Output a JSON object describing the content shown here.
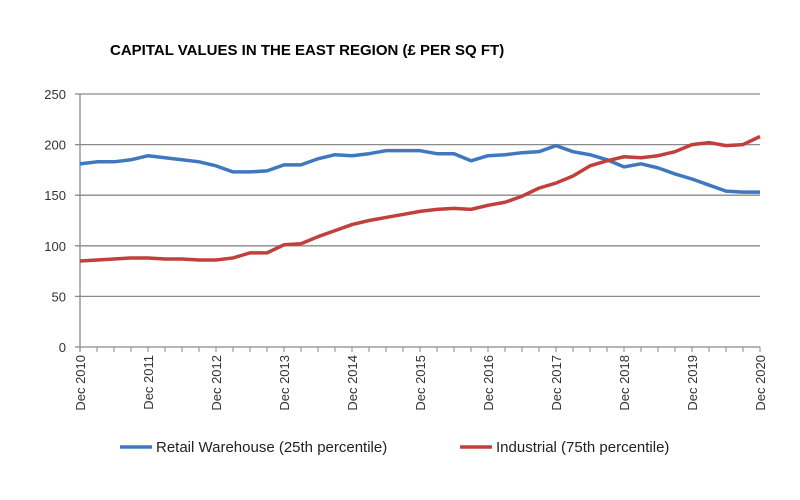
{
  "chart_data": {
    "type": "line",
    "title": "CAPITAL VALUES IN THE EAST REGION (£ PER SQ FT)",
    "xlabel": "",
    "ylabel": "",
    "ylim": [
      0,
      250
    ],
    "yticks": [
      0,
      50,
      100,
      150,
      200,
      250
    ],
    "grid": true,
    "legend_position": "bottom",
    "x_tick_labels": [
      "Dec 2010",
      "Dec 2011",
      "Dec 2012",
      "Dec 2013",
      "Dec 2014",
      "Dec 2015",
      "Dec 2016",
      "Dec 2017",
      "Dec 2018",
      "Dec 2019",
      "Dec 2020"
    ],
    "x_frequency": "quarterly",
    "series": [
      {
        "name": "Retail Warehouse (25th percentile)",
        "color": "#4078c0",
        "values": [
          181,
          183,
          183,
          185,
          189,
          187,
          185,
          183,
          179,
          173,
          173,
          174,
          180,
          180,
          186,
          190,
          189,
          191,
          194,
          194,
          194,
          191,
          191,
          184,
          189,
          190,
          192,
          193,
          199,
          193,
          190,
          185,
          178,
          181,
          177,
          171,
          166,
          160,
          154,
          153,
          153
        ]
      },
      {
        "name": "Industrial (75th percentile)",
        "color": "#c0403c",
        "values": [
          85,
          86,
          87,
          88,
          88,
          87,
          87,
          86,
          86,
          88,
          93,
          93,
          101,
          102,
          109,
          115,
          121,
          125,
          128,
          131,
          134,
          136,
          137,
          136,
          140,
          143,
          149,
          157,
          162,
          169,
          179,
          184,
          188,
          187,
          189,
          193,
          200,
          202,
          199,
          200,
          208
        ]
      }
    ]
  }
}
